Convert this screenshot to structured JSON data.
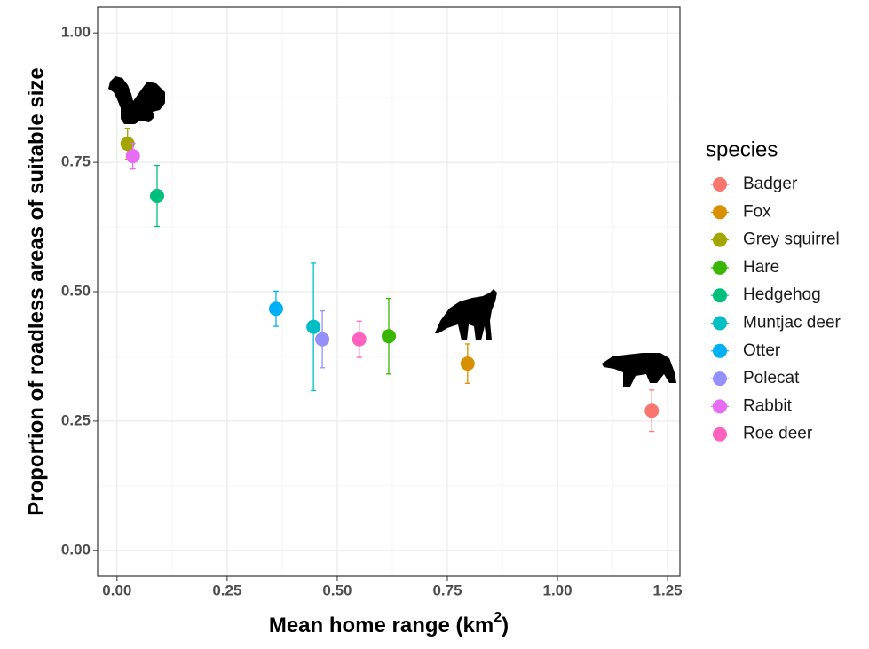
{
  "chart_data": {
    "type": "scatter",
    "ylabel": "Proportion of roadless areas of suitable size",
    "xlabel": {
      "text": "Mean home range (km",
      "superscript": "2",
      "suffix": ")"
    },
    "legend_title": "species",
    "legend": "right",
    "grid": true,
    "grid_minor": true,
    "xlim": [
      -0.044,
      1.278
    ],
    "ylim": [
      -0.05,
      1.05
    ],
    "xticks": [
      {
        "value": 0,
        "label": "0.00"
      },
      {
        "value": 0.25,
        "label": "0.25"
      },
      {
        "value": 0.5,
        "label": "0.50"
      },
      {
        "value": 0.75,
        "label": "0.75"
      },
      {
        "value": 1,
        "label": "1.00"
      },
      {
        "value": 1.25,
        "label": "1.25"
      }
    ],
    "yticks": [
      {
        "value": 0,
        "label": "0.00"
      },
      {
        "value": 0.25,
        "label": "0.25"
      },
      {
        "value": 0.5,
        "label": "0.50"
      },
      {
        "value": 0.75,
        "label": "0.75"
      },
      {
        "value": 1,
        "label": "1.00"
      }
    ],
    "series": [
      {
        "name": "Badger",
        "color": "#F8766D",
        "x": 1.214,
        "y": 0.27,
        "error": 0.04
      },
      {
        "name": "Fox",
        "color": "#D89000",
        "x": 0.796,
        "y": 0.361,
        "error": 0.038
      },
      {
        "name": "Grey squirrel",
        "color": "#A3A500",
        "x": 0.024,
        "y": 0.786,
        "error": 0.03
      },
      {
        "name": "Hare",
        "color": "#39B600",
        "x": 0.617,
        "y": 0.414,
        "error": 0.073
      },
      {
        "name": "Hedgehog",
        "color": "#00BF7D",
        "x": 0.091,
        "y": 0.685,
        "error": 0.059
      },
      {
        "name": "Muntjac deer",
        "color": "#00BFC4",
        "x": 0.446,
        "y": 0.432,
        "error": 0.123
      },
      {
        "name": "Otter",
        "color": "#00B0F6",
        "x": 0.361,
        "y": 0.467,
        "error": 0.034
      },
      {
        "name": "Polecat",
        "color": "#9590FF",
        "x": 0.466,
        "y": 0.408,
        "error": 0.055
      },
      {
        "name": "Rabbit",
        "color": "#E76BF3",
        "x": 0.036,
        "y": 0.762,
        "error": 0.025
      },
      {
        "name": "Roe deer",
        "color": "#FF62BC",
        "x": 0.55,
        "y": 0.408,
        "error": 0.035
      }
    ]
  }
}
